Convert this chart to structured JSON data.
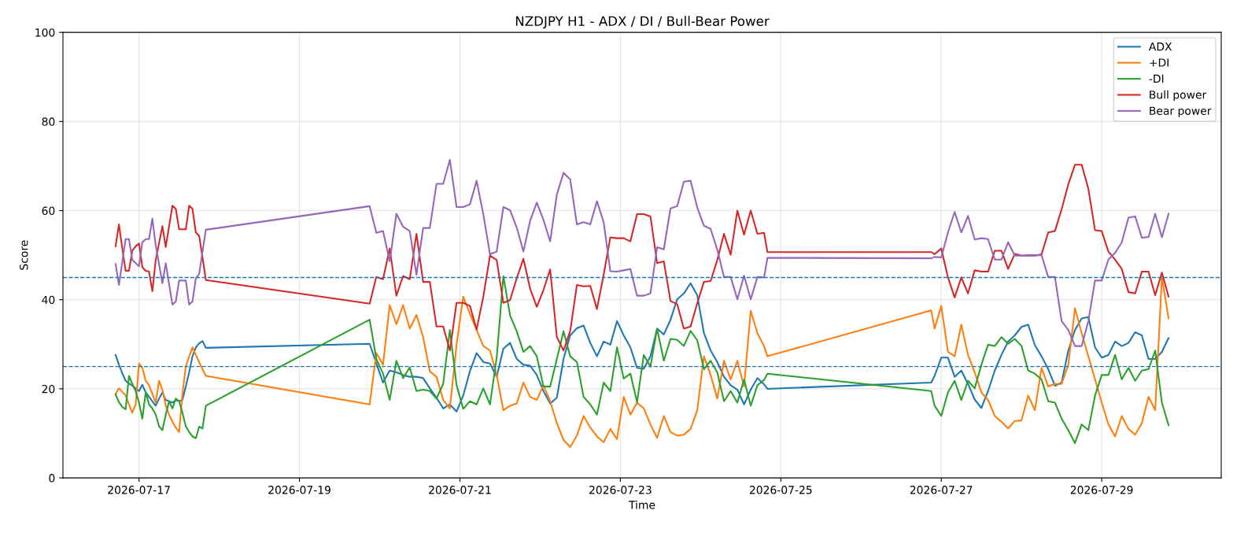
{
  "chart_data": {
    "type": "line",
    "title": "NZDJPY H1 - ADX / DI / Bull-Bear Power",
    "xlabel": "Time",
    "ylabel": "Score",
    "x": [
      "2026-07-16T17:00",
      "2026-07-16T18:00",
      "2026-07-16T19:00",
      "2026-07-16T20:00",
      "2026-07-16T21:00",
      "2026-07-16T22:00",
      "2026-07-16T23:00",
      "2026-07-17T00:00",
      "2026-07-17T01:00",
      "2026-07-17T02:00",
      "2026-07-17T03:00",
      "2026-07-17T04:00",
      "2026-07-17T05:00",
      "2026-07-17T06:00",
      "2026-07-17T07:00",
      "2026-07-17T08:00",
      "2026-07-17T09:00",
      "2026-07-17T10:00",
      "2026-07-17T11:00",
      "2026-07-17T12:00",
      "2026-07-17T13:00",
      "2026-07-17T14:00",
      "2026-07-17T15:00",
      "2026-07-17T16:00",
      "2026-07-17T17:00",
      "2026-07-17T18:00",
      "2026-07-17T19:00",
      "2026-07-17T20:00",
      "2026-07-19T21:00",
      "2026-07-19T23:00",
      "2026-07-20T01:00",
      "2026-07-20T03:00",
      "2026-07-20T05:00",
      "2026-07-20T07:00",
      "2026-07-20T09:00",
      "2026-07-20T11:00",
      "2026-07-20T13:00",
      "2026-07-20T15:00",
      "2026-07-20T17:00",
      "2026-07-20T19:00",
      "2026-07-20T21:00",
      "2026-07-20T23:00",
      "2026-07-21T01:00",
      "2026-07-21T03:00",
      "2026-07-21T05:00",
      "2026-07-21T07:00",
      "2026-07-21T09:00",
      "2026-07-21T11:00",
      "2026-07-21T13:00",
      "2026-07-21T15:00",
      "2026-07-21T17:00",
      "2026-07-21T19:00",
      "2026-07-21T21:00",
      "2026-07-21T23:00",
      "2026-07-22T01:00",
      "2026-07-22T03:00",
      "2026-07-22T05:00",
      "2026-07-22T07:00",
      "2026-07-22T09:00",
      "2026-07-22T11:00",
      "2026-07-22T13:00",
      "2026-07-22T15:00",
      "2026-07-22T17:00",
      "2026-07-22T19:00",
      "2026-07-22T21:00",
      "2026-07-22T23:00",
      "2026-07-23T01:00",
      "2026-07-23T03:00",
      "2026-07-23T05:00",
      "2026-07-23T07:00",
      "2026-07-23T09:00",
      "2026-07-23T11:00",
      "2026-07-23T13:00",
      "2026-07-23T15:00",
      "2026-07-23T17:00",
      "2026-07-23T19:00",
      "2026-07-23T21:00",
      "2026-07-23T23:00",
      "2026-07-24T01:00",
      "2026-07-24T03:00",
      "2026-07-24T05:00",
      "2026-07-24T07:00",
      "2026-07-24T09:00",
      "2026-07-24T11:00",
      "2026-07-24T13:00",
      "2026-07-24T15:00",
      "2026-07-24T17:00",
      "2026-07-24T19:00",
      "2026-07-24T20:00",
      "2026-07-26T21:00",
      "2026-07-26T22:00",
      "2026-07-27T00:00",
      "2026-07-27T02:00",
      "2026-07-27T04:00",
      "2026-07-27T06:00",
      "2026-07-27T08:00",
      "2026-07-27T10:00",
      "2026-07-27T12:00",
      "2026-07-27T14:00",
      "2026-07-27T16:00",
      "2026-07-27T18:00",
      "2026-07-27T20:00",
      "2026-07-27T22:00",
      "2026-07-28T00:00",
      "2026-07-28T02:00",
      "2026-07-28T04:00",
      "2026-07-28T06:00",
      "2026-07-28T08:00",
      "2026-07-28T10:00",
      "2026-07-28T12:00",
      "2026-07-28T14:00",
      "2026-07-28T16:00",
      "2026-07-28T18:00",
      "2026-07-28T20:00",
      "2026-07-28T22:00",
      "2026-07-29T00:00",
      "2026-07-29T02:00",
      "2026-07-29T04:00",
      "2026-07-29T06:00",
      "2026-07-29T08:00",
      "2026-07-29T10:00",
      "2026-07-29T12:00",
      "2026-07-29T14:00",
      "2026-07-29T16:00",
      "2026-07-29T18:00",
      "2026-07-29T20:00"
    ],
    "series": [
      {
        "name": "ADX",
        "color": "#1f77b4",
        "values": [
          27.6,
          25.4,
          23.5,
          21.8,
          21.2,
          20.7,
          20.1,
          19.5,
          20.9,
          19.2,
          18.2,
          17.2,
          16.2,
          17.8,
          19.2,
          17.5,
          17.2,
          16.9,
          17.5,
          17.2,
          17.5,
          20.5,
          23.7,
          27.3,
          29.3,
          30.2,
          30.7,
          29.2,
          30.1,
          25.7,
          21.4,
          24.1,
          23.7,
          23.1,
          22.7,
          22.7,
          22.4,
          20.1,
          18,
          15.6,
          16.5,
          14.9,
          18.5,
          24,
          28,
          26,
          25.7,
          22.7,
          29,
          30.3,
          26.7,
          25.4,
          25.2,
          23.1,
          19.5,
          16.7,
          18,
          26.7,
          32,
          33.6,
          34.2,
          30.3,
          27.3,
          30.6,
          29.9,
          35.2,
          32,
          29.3,
          24.7,
          24.5,
          27.3,
          33.5,
          32.2,
          35.5,
          40.1,
          41.4,
          43.7,
          41,
          32.5,
          28.6,
          26,
          22.7,
          20.8,
          19.8,
          16.5,
          19.8,
          22.4,
          21,
          20,
          21.4,
          22.9,
          27,
          27,
          22.7,
          24.1,
          21.1,
          17.6,
          15.7,
          19.5,
          24.1,
          27.6,
          30.6,
          32,
          33.9,
          34.4,
          29.8,
          27.3,
          24.4,
          20.7,
          21.4,
          28.6,
          33.2,
          35.8,
          36.1,
          29.3,
          27,
          27.6,
          30.6,
          29.6,
          30.3,
          32.7,
          32,
          26.7,
          26.7,
          28.3,
          31.4
        ]
      },
      {
        "name": "+DI",
        "color": "#ff7f0e",
        "values": [
          18.8,
          20.1,
          19.3,
          18.5,
          16.5,
          14.6,
          16.5,
          25.7,
          24.7,
          21.8,
          20.8,
          18.8,
          16.9,
          21.8,
          19.8,
          16.2,
          14.2,
          12.6,
          11.3,
          10.3,
          18.8,
          25,
          27.3,
          29.3,
          27.6,
          26,
          24.4,
          22.9,
          16.5,
          28,
          25.4,
          38.8,
          34.5,
          38.8,
          33.5,
          36.6,
          31.6,
          23.9,
          22.7,
          17.5,
          15.6,
          29.9,
          40.7,
          36.8,
          33.2,
          29.6,
          28.6,
          23.1,
          15.2,
          16.2,
          16.7,
          21.4,
          18.2,
          17.5,
          20.8,
          17.2,
          12.3,
          8.5,
          6.9,
          9.5,
          13.9,
          11.3,
          9.3,
          8,
          11,
          8.7,
          18.2,
          14.2,
          16.9,
          15.6,
          12,
          9,
          13.9,
          10.3,
          9.5,
          9.7,
          11,
          15.2,
          27.3,
          23.1,
          17.8,
          26.3,
          22.1,
          26.3,
          20.5,
          37.5,
          32.5,
          29.5,
          27.3,
          37.6,
          33.5,
          38.6,
          28.3,
          27.3,
          34.4,
          27.6,
          23.7,
          19.2,
          17.5,
          13.9,
          12.6,
          11.1,
          12.8,
          12.9,
          18.5,
          15.2,
          24.7,
          20.5,
          21.1,
          21.1,
          25.4,
          38.1,
          32.5,
          27.3,
          22.1,
          16.9,
          12,
          9.3,
          13.9,
          11,
          9.7,
          12.3,
          18.2,
          15.2,
          45,
          35.8
        ]
      },
      {
        "name": "-DI",
        "color": "#2ca02c",
        "values": [
          18.7,
          17,
          15.9,
          15.4,
          22.9,
          21.1,
          19.5,
          16.9,
          13.3,
          19.2,
          16.5,
          15.6,
          14.2,
          11.6,
          10.7,
          14.2,
          17.2,
          15.6,
          17.8,
          17.2,
          14.6,
          11.6,
          10.3,
          9.3,
          8.9,
          11.5,
          11.1,
          16.2,
          35.5,
          26.7,
          23.4,
          17.5,
          26.3,
          22.4,
          24.8,
          19.5,
          19.8,
          19.5,
          17.8,
          21.1,
          33.2,
          20.8,
          15.5,
          17.2,
          16.5,
          20.1,
          16.5,
          27,
          45.3,
          36.5,
          32.9,
          28.3,
          29.6,
          27.3,
          20.5,
          20.5,
          26.7,
          32.9,
          27.3,
          26,
          18.2,
          16.5,
          14.2,
          21.4,
          19.5,
          29.3,
          22.3,
          23.4,
          17,
          27.6,
          25,
          33.5,
          26.3,
          31.2,
          31,
          29.6,
          33,
          30.9,
          24.4,
          26.3,
          23.7,
          17.2,
          19.5,
          16.9,
          22.1,
          16.2,
          20.8,
          22,
          23.4,
          19.5,
          16.2,
          13.9,
          19.2,
          21.8,
          17.5,
          21.8,
          20.1,
          25.4,
          29.9,
          29.6,
          31.6,
          30.1,
          31.2,
          29.6,
          24.1,
          23.4,
          22.1,
          17.2,
          16.9,
          13.3,
          10.7,
          7.8,
          12,
          10.7,
          18.5,
          23.1,
          23.1,
          27.6,
          22.1,
          24.7,
          21.8,
          24.1,
          24.4,
          28.6,
          16.9,
          11.8
        ]
      },
      {
        "name": "Bull power",
        "color": "#d62728",
        "values": [
          52,
          56.9,
          51.5,
          46.5,
          46.5,
          51,
          52,
          52.6,
          47.3,
          46.5,
          46.3,
          41.9,
          48.9,
          52.7,
          56.5,
          51.8,
          56.5,
          61.1,
          60.4,
          55.8,
          55.8,
          55.8,
          61.1,
          60.4,
          55.1,
          54.3,
          49.5,
          44.4,
          39.1,
          45.1,
          44.6,
          51.5,
          40.9,
          45.3,
          44.6,
          54.8,
          44,
          44,
          34,
          34,
          28.6,
          39.3,
          39.3,
          38.6,
          33.3,
          40.7,
          49.9,
          48.9,
          39.3,
          39.9,
          44.8,
          49.2,
          42.5,
          38.4,
          42.2,
          46.8,
          31.6,
          28.6,
          33,
          43.3,
          43,
          43.1,
          37.9,
          45.6,
          54,
          53.8,
          53.8,
          53.1,
          59.2,
          59.2,
          58.7,
          48.2,
          48.6,
          39.7,
          39,
          33.5,
          34,
          39.2,
          44,
          44.2,
          48.9,
          54.8,
          50.1,
          60,
          54.6,
          60,
          54.8,
          55,
          50.7,
          50.7,
          50.2,
          51.5,
          45,
          40.5,
          45,
          41.4,
          46.6,
          46.3,
          46.3,
          51,
          51,
          46.9,
          50.3,
          49.9,
          49.9,
          49.9,
          50.2,
          55.1,
          55.4,
          60.3,
          65.9,
          70.3,
          70.3,
          64.9,
          55.6,
          55.4,
          50.8,
          49,
          46.9,
          41.7,
          41.4,
          46.3,
          46.3,
          41,
          46.1,
          40.7
        ]
      },
      {
        "name": "Bear power",
        "color": "#9467bd",
        "values": [
          48,
          43.3,
          48.5,
          53.6,
          53.6,
          48.9,
          48.2,
          47.5,
          52.9,
          53.6,
          53.6,
          58.2,
          52.2,
          48,
          43.7,
          48.2,
          43.5,
          38.9,
          39.6,
          44.3,
          44.3,
          44.3,
          38.9,
          39.6,
          44.8,
          45.8,
          50.8,
          55.7,
          61,
          55,
          55.4,
          48.6,
          59.3,
          56.4,
          55.4,
          45.6,
          56.1,
          56.1,
          66,
          66,
          71.4,
          60.8,
          60.8,
          61.4,
          66.7,
          59.2,
          50.2,
          50.8,
          60.8,
          60.1,
          56.2,
          50.8,
          57.7,
          61.8,
          57.9,
          53.1,
          63.6,
          68.5,
          67,
          56.9,
          57.4,
          56.9,
          62.1,
          57.4,
          46.4,
          46.3,
          46.6,
          46.9,
          40.9,
          40.9,
          41.4,
          51.8,
          51.3,
          60.5,
          61,
          66.5,
          66.7,
          60.7,
          56.6,
          55.9,
          51.2,
          45.1,
          45.1,
          40.1,
          45.4,
          40.1,
          45.1,
          45,
          49.4,
          49.3,
          49.6,
          49.5,
          55.1,
          59.7,
          55.1,
          58.8,
          53.5,
          53.8,
          53.6,
          49,
          49,
          52.9,
          49.9,
          49.9,
          50,
          50,
          50,
          45.1,
          45.1,
          35.2,
          33.2,
          29.6,
          29.6,
          35.2,
          44.3,
          44.3,
          49,
          50.5,
          52.9,
          58.4,
          58.7,
          53.9,
          54.1,
          59.3,
          54,
          59.3
        ]
      }
    ],
    "xlim": [
      "2026-07-16T01:15",
      "2026-07-30T11:45"
    ],
    "xticks": [
      "2026-07-17",
      "2026-07-19",
      "2026-07-21",
      "2026-07-23",
      "2026-07-25",
      "2026-07-27",
      "2026-07-29"
    ],
    "ylim": [
      0,
      100
    ],
    "yticks": [
      0,
      20,
      40,
      60,
      80,
      100
    ],
    "ref_lines": [
      {
        "axis": "y",
        "value": 45,
        "color": "#1f77b4",
        "line_style": "dashed"
      },
      {
        "axis": "y",
        "value": 25,
        "color": "#1f77b4",
        "line_style": "dashed"
      }
    ],
    "grid": true,
    "legend": "top right",
    "line_style": "solid",
    "marker": "none"
  }
}
